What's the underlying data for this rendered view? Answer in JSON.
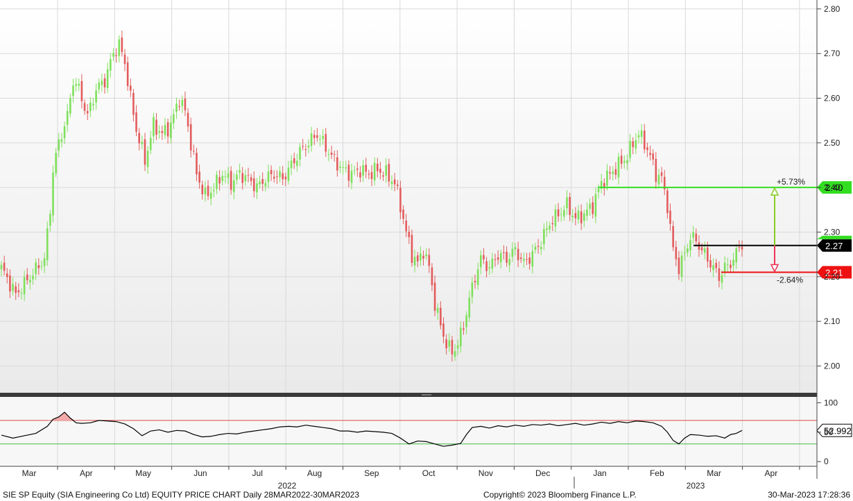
{
  "footer": {
    "left": "SIE SP Equity (SIA Engineering Co Ltd) EQUITY PRICE CHART  Daily 28MAR2022-30MAR2023",
    "center": "Copyright© 2023 Bloomberg Finance L.P.",
    "right": "30-Mar-2023 17:28:36"
  },
  "colors": {
    "up": "#7ee05a",
    "down": "#e35b5b",
    "upper_line": "#33dd22",
    "last_line": "#000000",
    "lower_line": "#ee1111",
    "grid": "#d9d9d9",
    "background_top": "#ffffff",
    "background_bottom": "#ececec",
    "rsi_upper": "#dd4444",
    "rsi_lower": "#44bb44"
  },
  "chart_data": [
    {
      "type": "candlestick",
      "panel": "price",
      "ylim": [
        1.94,
        2.82
      ],
      "yticks": [
        "2.00",
        "2.10",
        "2.20",
        "2.30",
        "2.40",
        "2.50",
        "2.60",
        "2.70",
        "2.80"
      ],
      "xticks": [
        "Mar",
        "Apr",
        "May",
        "Jun",
        "Jul",
        "Aug",
        "Sep",
        "Oct",
        "Nov",
        "Dec",
        "Jan",
        "Feb",
        "Mar",
        "Apr"
      ],
      "year_labels": [
        "2022",
        "2023"
      ],
      "grid": true,
      "series_close": [
        [
          0,
          2.22
        ],
        [
          5,
          2.16
        ],
        [
          10,
          2.2
        ],
        [
          15,
          2.24
        ],
        [
          17,
          2.35
        ],
        [
          18,
          2.44
        ],
        [
          20,
          2.5
        ],
        [
          23,
          2.56
        ],
        [
          25,
          2.64
        ],
        [
          27,
          2.62
        ],
        [
          30,
          2.56
        ],
        [
          33,
          2.62
        ],
        [
          36,
          2.64
        ],
        [
          39,
          2.7
        ],
        [
          41,
          2.72
        ],
        [
          43,
          2.68
        ],
        [
          45,
          2.6
        ],
        [
          47,
          2.53
        ],
        [
          50,
          2.46
        ],
        [
          53,
          2.54
        ],
        [
          56,
          2.52
        ],
        [
          59,
          2.54
        ],
        [
          62,
          2.6
        ],
        [
          64,
          2.57
        ],
        [
          66,
          2.5
        ],
        [
          68,
          2.43
        ],
        [
          71,
          2.38
        ],
        [
          74,
          2.4
        ],
        [
          77,
          2.43
        ],
        [
          80,
          2.41
        ],
        [
          83,
          2.43
        ],
        [
          86,
          2.42
        ],
        [
          89,
          2.4
        ],
        [
          92,
          2.42
        ],
        [
          95,
          2.43
        ],
        [
          98,
          2.42
        ],
        [
          101,
          2.45
        ],
        [
          104,
          2.48
        ],
        [
          107,
          2.5
        ],
        [
          110,
          2.52
        ],
        [
          113,
          2.49
        ],
        [
          116,
          2.46
        ],
        [
          119,
          2.44
        ],
        [
          122,
          2.43
        ],
        [
          125,
          2.44
        ],
        [
          128,
          2.43
        ],
        [
          131,
          2.44
        ],
        [
          134,
          2.43
        ],
        [
          137,
          2.41
        ],
        [
          139,
          2.36
        ],
        [
          141,
          2.3
        ],
        [
          143,
          2.25
        ],
        [
          145,
          2.23
        ],
        [
          147,
          2.26
        ],
        [
          149,
          2.22
        ],
        [
          151,
          2.14
        ],
        [
          153,
          2.09
        ],
        [
          155,
          2.05
        ],
        [
          157,
          2.03
        ],
        [
          159,
          2.05
        ],
        [
          161,
          2.09
        ],
        [
          163,
          2.15
        ],
        [
          165,
          2.2
        ],
        [
          167,
          2.24
        ],
        [
          170,
          2.22
        ],
        [
          173,
          2.25
        ],
        [
          176,
          2.24
        ],
        [
          179,
          2.26
        ],
        [
          182,
          2.23
        ],
        [
          185,
          2.25
        ],
        [
          188,
          2.28
        ],
        [
          191,
          2.32
        ],
        [
          194,
          2.34
        ],
        [
          197,
          2.36
        ],
        [
          200,
          2.33
        ],
        [
          203,
          2.34
        ],
        [
          206,
          2.36
        ],
        [
          209,
          2.41
        ],
        [
          212,
          2.43
        ],
        [
          215,
          2.45
        ],
        [
          218,
          2.47
        ],
        [
          220,
          2.5
        ],
        [
          222,
          2.52
        ],
        [
          224,
          2.5
        ],
        [
          226,
          2.47
        ],
        [
          228,
          2.43
        ],
        [
          230,
          2.42
        ],
        [
          232,
          2.36
        ],
        [
          234,
          2.26
        ],
        [
          236,
          2.22
        ],
        [
          238,
          2.25
        ],
        [
          240,
          2.29
        ],
        [
          242,
          2.28
        ],
        [
          244,
          2.26
        ],
        [
          246,
          2.24
        ],
        [
          248,
          2.22
        ],
        [
          250,
          2.2
        ],
        [
          252,
          2.22
        ],
        [
          254,
          2.23
        ],
        [
          256,
          2.25
        ],
        [
          257,
          2.27
        ],
        [
          258,
          2.27
        ]
      ],
      "levels": [
        {
          "name": "upper",
          "value": 2.4,
          "label": "2.40",
          "pct": "+5.73%"
        },
        {
          "name": "last",
          "value": 2.27,
          "label": "2.27"
        },
        {
          "name": "lower",
          "value": 2.21,
          "label": "2.21",
          "pct": "-2.64%"
        }
      ]
    },
    {
      "type": "line",
      "panel": "rsi",
      "ylim": [
        -8,
        110
      ],
      "yticks": [
        "100",
        "50",
        "0"
      ],
      "upper_band": 70,
      "lower_band": 30,
      "last_value_label": "52.992",
      "series": [
        [
          0,
          45
        ],
        [
          4,
          40
        ],
        [
          8,
          44
        ],
        [
          12,
          48
        ],
        [
          16,
          60
        ],
        [
          18,
          72
        ],
        [
          20,
          76
        ],
        [
          22,
          84
        ],
        [
          24,
          74
        ],
        [
          26,
          66
        ],
        [
          28,
          65
        ],
        [
          31,
          66
        ],
        [
          34,
          70
        ],
        [
          37,
          69
        ],
        [
          40,
          68
        ],
        [
          43,
          64
        ],
        [
          46,
          56
        ],
        [
          49,
          44
        ],
        [
          52,
          52
        ],
        [
          55,
          54
        ],
        [
          58,
          50
        ],
        [
          61,
          53
        ],
        [
          64,
          52
        ],
        [
          67,
          46
        ],
        [
          70,
          42
        ],
        [
          73,
          43
        ],
        [
          76,
          46
        ],
        [
          79,
          48
        ],
        [
          82,
          47
        ],
        [
          85,
          50
        ],
        [
          88,
          52
        ],
        [
          91,
          54
        ],
        [
          94,
          56
        ],
        [
          97,
          59
        ],
        [
          100,
          60
        ],
        [
          103,
          59
        ],
        [
          106,
          62
        ],
        [
          109,
          60
        ],
        [
          112,
          58
        ],
        [
          115,
          56
        ],
        [
          118,
          52
        ],
        [
          121,
          52
        ],
        [
          124,
          50
        ],
        [
          127,
          52
        ],
        [
          130,
          51
        ],
        [
          133,
          50
        ],
        [
          136,
          48
        ],
        [
          139,
          40
        ],
        [
          142,
          30
        ],
        [
          145,
          35
        ],
        [
          148,
          34
        ],
        [
          151,
          30
        ],
        [
          154,
          26
        ],
        [
          157,
          28
        ],
        [
          160,
          31
        ],
        [
          162,
          46
        ],
        [
          164,
          58
        ],
        [
          167,
          60
        ],
        [
          170,
          57
        ],
        [
          173,
          61
        ],
        [
          176,
          59
        ],
        [
          179,
          62
        ],
        [
          182,
          60
        ],
        [
          185,
          63
        ],
        [
          188,
          62
        ],
        [
          191,
          64
        ],
        [
          194,
          61
        ],
        [
          197,
          63
        ],
        [
          200,
          65
        ],
        [
          203,
          62
        ],
        [
          206,
          64
        ],
        [
          209,
          67
        ],
        [
          212,
          65
        ],
        [
          215,
          68
        ],
        [
          218,
          66
        ],
        [
          221,
          69
        ],
        [
          224,
          68
        ],
        [
          227,
          66
        ],
        [
          230,
          60
        ],
        [
          232,
          50
        ],
        [
          234,
          36
        ],
        [
          236,
          30
        ],
        [
          238,
          40
        ],
        [
          240,
          46
        ],
        [
          243,
          45
        ],
        [
          246,
          43
        ],
        [
          249,
          44
        ],
        [
          252,
          40
        ],
        [
          254,
          46
        ],
        [
          256,
          48
        ],
        [
          258,
          53
        ]
      ]
    }
  ]
}
